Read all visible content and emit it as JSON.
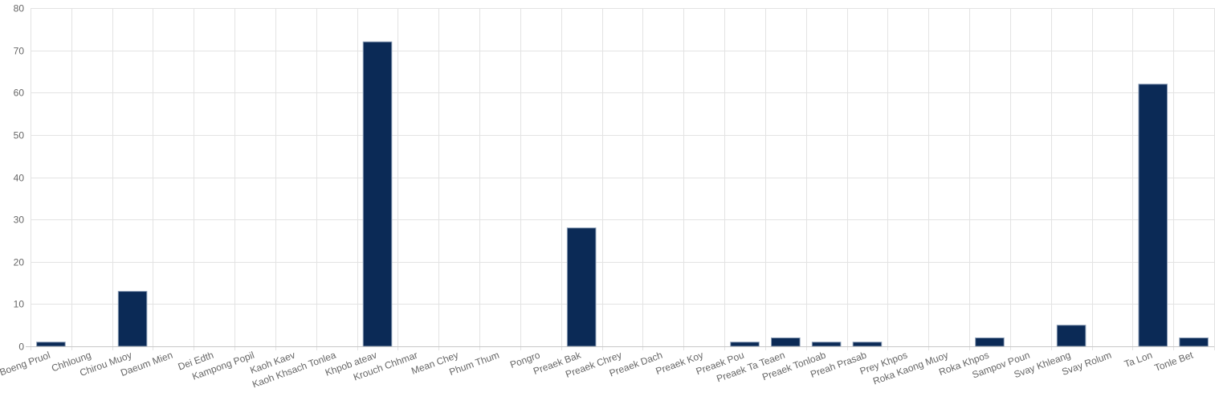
{
  "chart_data": {
    "type": "bar",
    "title": "",
    "xlabel": "",
    "ylabel": "",
    "ylim": [
      0,
      80
    ],
    "yticks": [
      0,
      10,
      20,
      30,
      40,
      50,
      60,
      70,
      80
    ],
    "grid": true,
    "legend": "none",
    "bar_color": "#0b2a56",
    "categories": [
      "Boeng Pruol",
      "Chhloung",
      "Chirou Muoy",
      "Daeum Mien",
      "Dei Edth",
      "Kampong Popil",
      "Kaoh Kaev",
      "Kaoh Khsach Tonlea",
      "Khpob ateav",
      "Krouch Chhmar",
      "Mean Chey",
      "Phum Thum",
      "Pongro",
      "Preaek Bak",
      "Preaek Chrey",
      "Preaek Dach",
      "Preaek Koy",
      "Preaek Pou",
      "Preaek Ta Teaen",
      "Preaek Tonloab",
      "Preah Prasab",
      "Prey Khpos",
      "Roka Kaong Muoy",
      "Roka Khpos",
      "Sampov Poun",
      "Svay Khleang",
      "Svay Rolum",
      "Ta Lon",
      "Tonle Bet"
    ],
    "values": [
      1,
      0,
      13,
      0,
      0,
      0,
      0,
      0,
      72,
      0,
      0,
      0,
      0,
      28,
      0,
      0,
      0,
      1,
      2,
      1,
      1,
      0,
      0,
      2,
      0,
      5,
      0,
      62,
      2
    ]
  }
}
